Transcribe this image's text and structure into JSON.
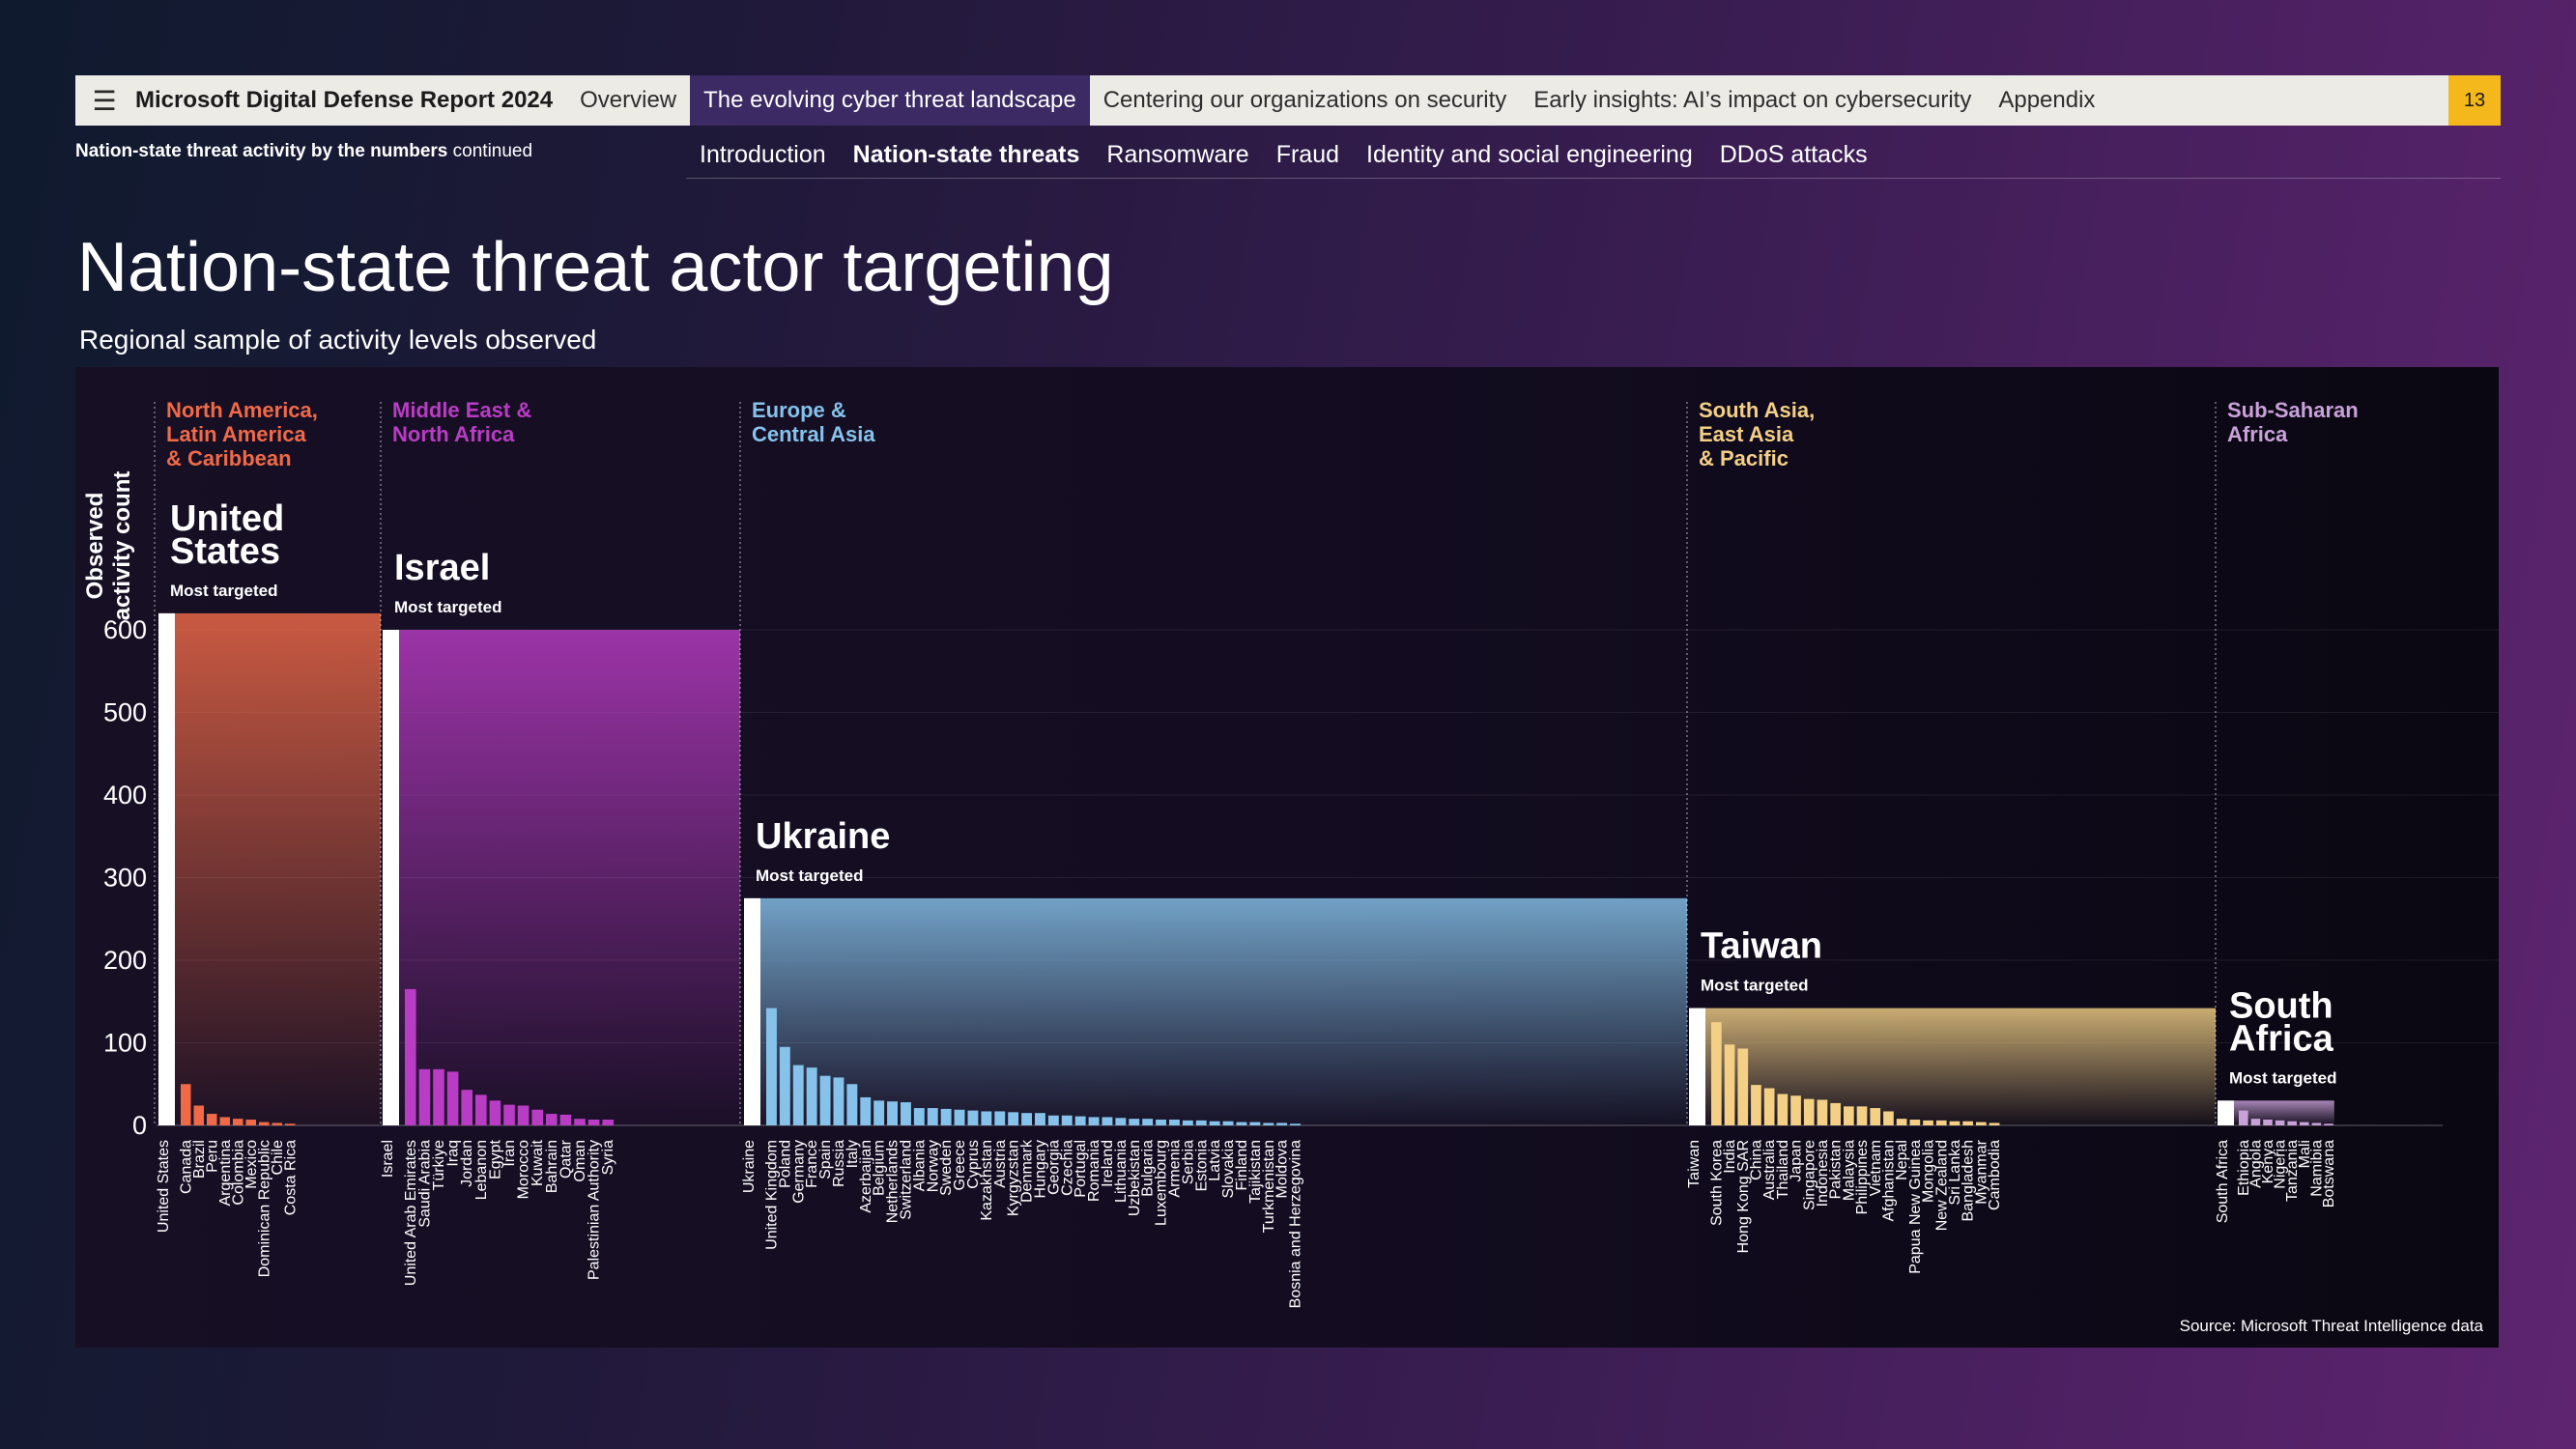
{
  "nav": {
    "menu_icon": "hamburger-icon",
    "brand": "Microsoft Digital Defense Report 2024",
    "tabs": [
      {
        "label": "Overview",
        "active": false
      },
      {
        "label": "The evolving cyber threat landscape",
        "active": true
      },
      {
        "label": "Centering our organizations on security",
        "active": false
      },
      {
        "label": "Early insights: AI’s impact on cybersecurity",
        "active": false
      },
      {
        "label": "Appendix",
        "active": false
      }
    ],
    "page_number": "13"
  },
  "context": {
    "bold": "Nation-state threat activity by the numbers",
    "rest": " continued"
  },
  "subnav": [
    {
      "label": "Introduction",
      "active": false
    },
    {
      "label": "Nation-state threats",
      "active": true
    },
    {
      "label": "Ransomware",
      "active": false
    },
    {
      "label": "Fraud",
      "active": false
    },
    {
      "label": "Identity and social engineering",
      "active": false
    },
    {
      "label": "DDoS attacks",
      "active": false
    }
  ],
  "heading": {
    "title": "Nation-state threat actor targeting",
    "subtitle": "Regional sample of activity levels observed"
  },
  "chart_data": {
    "type": "bar",
    "ylabel": "Observed activity count",
    "ylim": [
      0,
      600
    ],
    "yticks": [
      0,
      100,
      200,
      300,
      400,
      500,
      600
    ],
    "grid": true,
    "source": "Source: Microsoft Threat Intelligence data",
    "most_targeted_label": "Most targeted",
    "regions": [
      {
        "name": "North America, Latin America & Caribbean",
        "color": "#f06a48",
        "top_country": "United States",
        "categories": [
          "United States",
          "Canada",
          "Brazil",
          "Peru",
          "Argentina",
          "Colombia",
          "Mexico",
          "Dominican Republic",
          "Chile",
          "Costa Rica"
        ],
        "values": [
          620,
          50,
          24,
          14,
          10,
          8,
          7,
          4,
          3,
          2
        ]
      },
      {
        "name": "Middle East & North Africa",
        "color": "#b93cc4",
        "top_country": "Israel",
        "categories": [
          "Israel",
          "United Arab Emirates",
          "Saudi Arabia",
          "Türkiye",
          "Iraq",
          "Jordan",
          "Lebanon",
          "Egypt",
          "Iran",
          "Morocco",
          "Kuwait",
          "Bahrain",
          "Qatar",
          "Oman",
          "Palestinian Authority",
          "Syria"
        ],
        "values": [
          600,
          165,
          68,
          68,
          65,
          43,
          37,
          30,
          25,
          24,
          19,
          14,
          13,
          8,
          7,
          7
        ]
      },
      {
        "name": "Europe & Central Asia",
        "color": "#86c2ea",
        "top_country": "Ukraine",
        "categories": [
          "Ukraine",
          "United Kingdom",
          "Poland",
          "Germany",
          "France",
          "Spain",
          "Russia",
          "Italy",
          "Azerbaijan",
          "Belgium",
          "Netherlands",
          "Switzerland",
          "Albania",
          "Norway",
          "Sweden",
          "Greece",
          "Cyprus",
          "Kazakhstan",
          "Austria",
          "Kyrgyzstan",
          "Denmark",
          "Hungary",
          "Georgia",
          "Czechia",
          "Portugal",
          "Romania",
          "Ireland",
          "Lithuania",
          "Uzbekistan",
          "Bulgaria",
          "Luxembourg",
          "Armenia",
          "Serbia",
          "Estonia",
          "Latvia",
          "Slovakia",
          "Finland",
          "Tajikistan",
          "Turkmenistan",
          "Moldova",
          "Bosnia and Herzegovina"
        ],
        "values": [
          275,
          142,
          95,
          73,
          70,
          60,
          58,
          50,
          34,
          30,
          29,
          28,
          21,
          21,
          20,
          19,
          18,
          17,
          17,
          16,
          15,
          15,
          12,
          12,
          11,
          10,
          10,
          9,
          8,
          8,
          7,
          7,
          6,
          6,
          5,
          5,
          4,
          4,
          3,
          3,
          2
        ]
      },
      {
        "name": "South Asia, East Asia & Pacific",
        "color": "#f3d086",
        "top_country": "Taiwan",
        "categories": [
          "Taiwan",
          "South Korea",
          "India",
          "Hong Kong SAR",
          "China",
          "Australia",
          "Thailand",
          "Japan",
          "Singapore",
          "Indonesia",
          "Pakistan",
          "Malaysia",
          "Philippines",
          "Vietnam",
          "Afghanistan",
          "Nepal",
          "Papua New Guinea",
          "Mongolia",
          "New Zealand",
          "Sri Lanka",
          "Bangladesh",
          "Myanmar",
          "Cambodia"
        ],
        "values": [
          142,
          125,
          98,
          93,
          49,
          45,
          38,
          36,
          32,
          31,
          27,
          23,
          23,
          21,
          17,
          8,
          7,
          6,
          6,
          5,
          5,
          4,
          3
        ]
      },
      {
        "name": "Sub-Saharan Africa",
        "color": "#c9a1d9",
        "top_country": "South Africa",
        "categories": [
          "South Africa",
          "Ethiopia",
          "Angola",
          "Kenya",
          "Nigeria",
          "Tanzania",
          "Mali",
          "Namibia",
          "Botswana"
        ],
        "values": [
          30,
          18,
          8,
          7,
          6,
          5,
          4,
          3,
          2
        ]
      }
    ]
  }
}
